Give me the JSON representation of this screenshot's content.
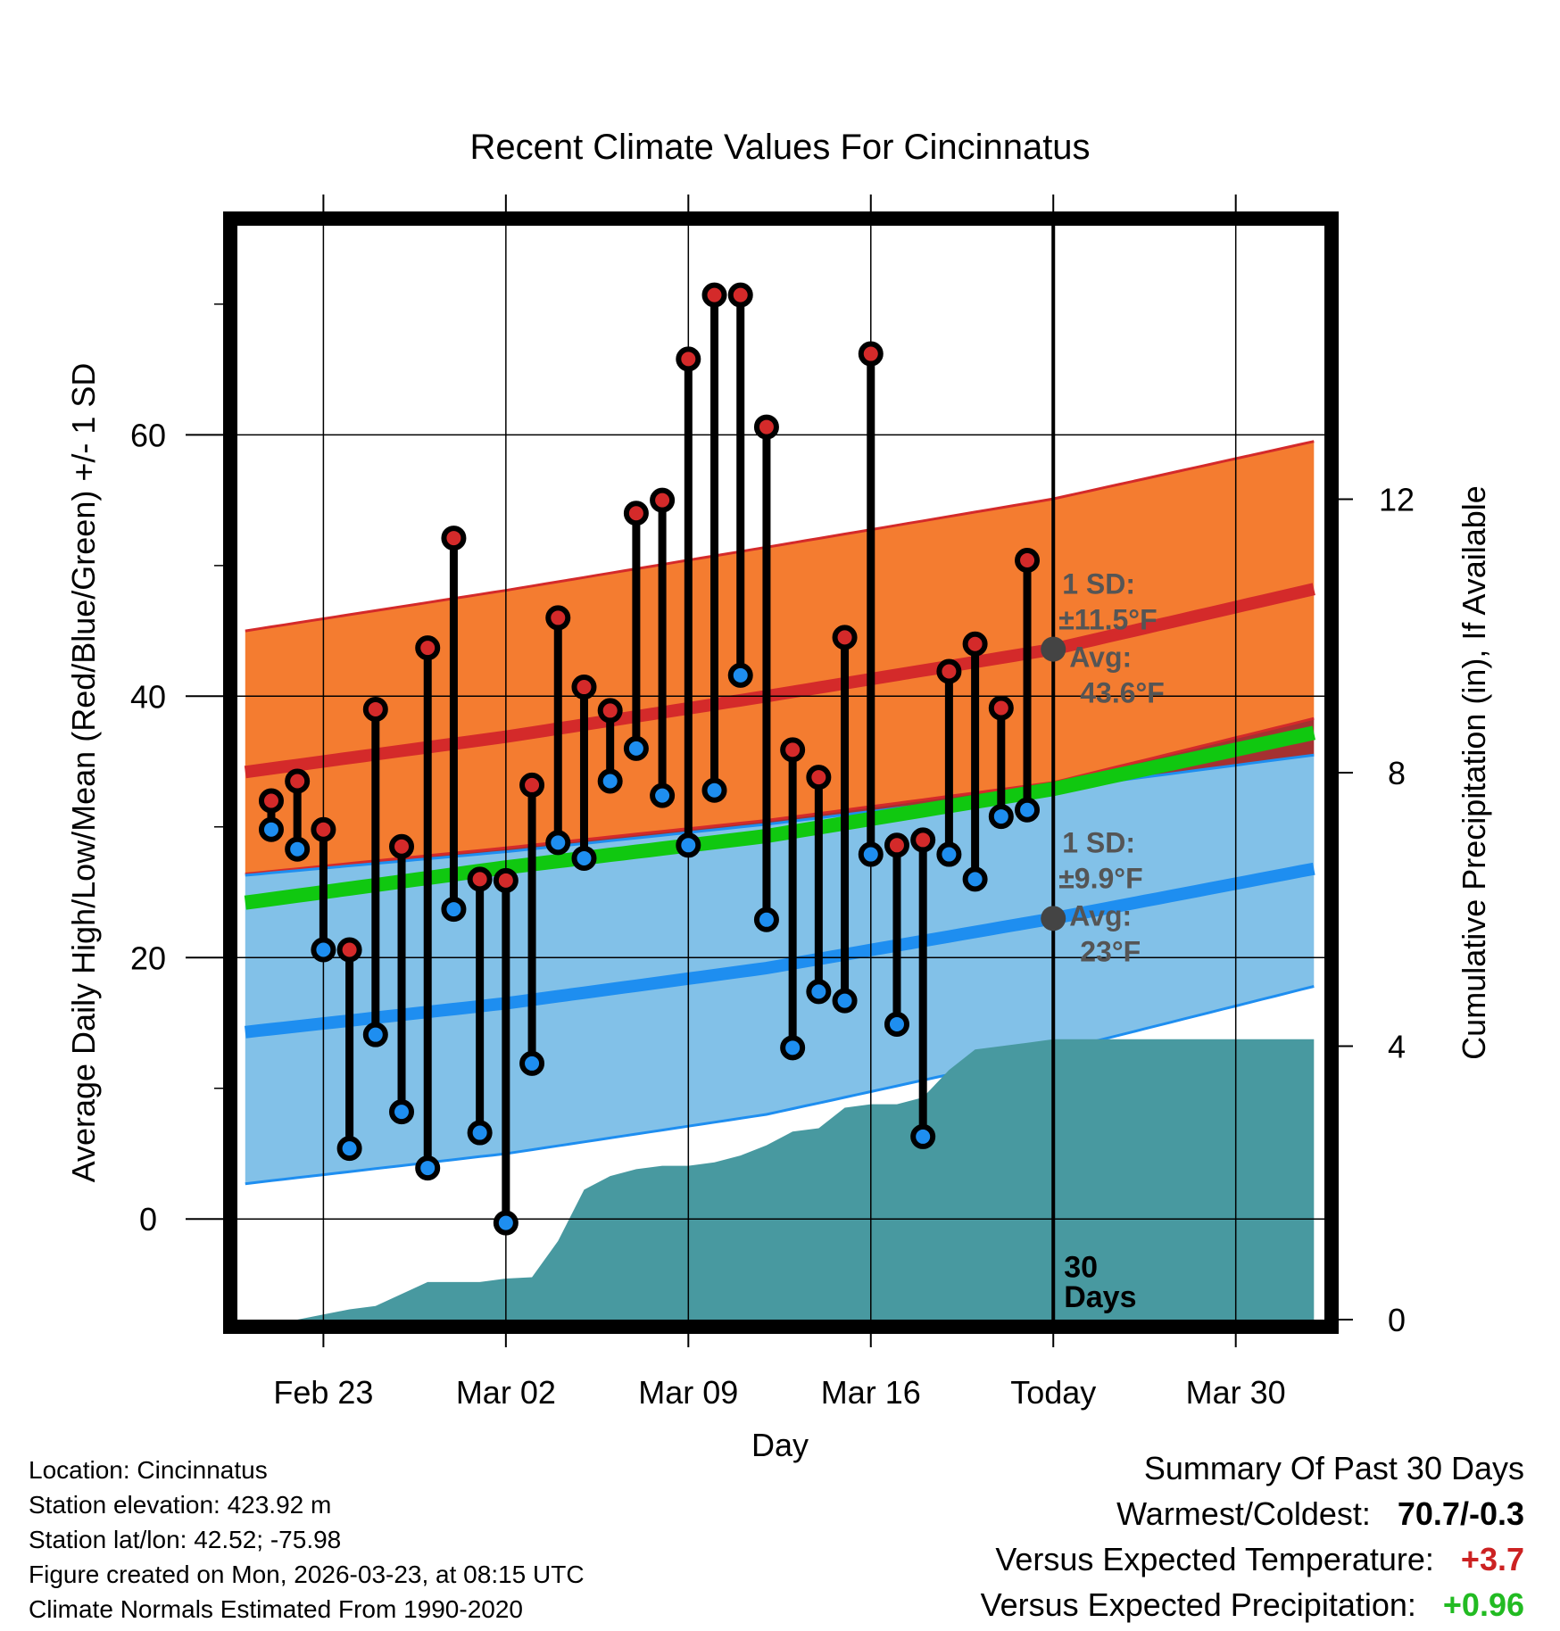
{
  "chart_data": {
    "type": "line",
    "title": "Recent Climate Values For Cincinnatus",
    "xlabel": "Day",
    "ylabel": "Average Daily High/Low/Mean (Red/Blue/Green) +/- 1 SD",
    "y2label": "Cumulative Precipitation (in), If Available",
    "xlim": [
      -0.3,
      41.4
    ],
    "ylim": [
      -7.7,
      76
    ],
    "y2lim": [
      0,
      16
    ],
    "x_ticks": [
      {
        "x": 3,
        "label": "Feb 23"
      },
      {
        "x": 10,
        "label": "Mar 02"
      },
      {
        "x": 17,
        "label": "Mar 09"
      },
      {
        "x": 24,
        "label": "Mar 16"
      },
      {
        "x": 31,
        "label": "Today"
      },
      {
        "x": 38,
        "label": "Mar 30"
      }
    ],
    "y_ticks": [
      0,
      20,
      40,
      60
    ],
    "y2_ticks": [
      0,
      4,
      8,
      12
    ],
    "today_x": 31,
    "days_label": "30 Days",
    "normals": {
      "high_mean": {
        "x": [
          0,
          10,
          20,
          31,
          41
        ],
        "y": [
          34.2,
          36.9,
          40.0,
          43.6,
          48.2
        ]
      },
      "high_upper": {
        "x": [
          0,
          10,
          20,
          31,
          41
        ],
        "y": [
          45.0,
          48.1,
          51.4,
          55.1,
          59.5
        ]
      },
      "high_lower": {
        "x": [
          0,
          10,
          20,
          31,
          41
        ],
        "y": [
          26.4,
          28.4,
          30.5,
          33.4,
          38.3
        ]
      },
      "low_mean": {
        "x": [
          0,
          10,
          20,
          31,
          41
        ],
        "y": [
          14.3,
          16.5,
          19.2,
          23.0,
          26.8
        ]
      },
      "low_upper": {
        "x": [
          0,
          10,
          20,
          31,
          41
        ],
        "y": [
          26.3,
          28.1,
          30.2,
          32.9,
          35.5
        ]
      },
      "low_lower": {
        "x": [
          0,
          10,
          20,
          31,
          41
        ],
        "y": [
          2.7,
          5.0,
          8.0,
          12.8,
          17.8
        ]
      },
      "mean_mean": {
        "x": [
          0,
          10,
          20,
          31,
          41
        ],
        "y": [
          24.2,
          26.9,
          29.3,
          32.9,
          37.2
        ]
      }
    },
    "series": [
      {
        "name": "High",
        "values": [
          32.0,
          33.5,
          29.8,
          20.6,
          39.0,
          28.5,
          43.7,
          52.1,
          26.0,
          25.9,
          33.2,
          46.0,
          40.7,
          38.9,
          54.0,
          55.0,
          65.8,
          70.7,
          70.7,
          60.6,
          35.9,
          33.8,
          44.5,
          66.2,
          28.6,
          29.0,
          41.9,
          44.0,
          39.1,
          50.4
        ]
      },
      {
        "name": "Low",
        "values": [
          29.8,
          28.3,
          20.6,
          5.4,
          14.1,
          8.2,
          3.9,
          23.7,
          6.6,
          -0.3,
          11.9,
          28.8,
          27.6,
          33.5,
          36.0,
          32.4,
          28.6,
          32.8,
          41.6,
          22.9,
          13.1,
          17.4,
          16.7,
          27.9,
          14.9,
          6.3,
          27.9,
          26.0,
          30.8,
          31.3
        ]
      },
      {
        "name": "Cumulative Precipitation",
        "x": [
          0,
          2,
          4,
          5,
          7,
          9,
          10,
          11,
          12,
          13,
          14,
          15,
          16,
          17,
          18,
          19,
          20,
          21,
          22,
          23,
          24,
          25,
          26,
          27,
          28,
          29,
          30,
          31,
          41
        ],
        "values": [
          0,
          0,
          0.15,
          0.2,
          0.55,
          0.55,
          0.6,
          0.62,
          1.15,
          1.9,
          2.1,
          2.2,
          2.25,
          2.25,
          2.3,
          2.4,
          2.55,
          2.75,
          2.8,
          3.1,
          3.15,
          3.15,
          3.25,
          3.65,
          3.95,
          4.0,
          4.05,
          4.1,
          4.1
        ]
      }
    ],
    "annotations": [
      {
        "target": "high",
        "sd_label": "1 SD:",
        "sd_value": "±11.5°F",
        "avg_label": "Avg:",
        "avg_value": "43.6°F",
        "marker_y": 43.6
      },
      {
        "target": "low",
        "sd_label": "1 SD:",
        "sd_value": "±9.9°F",
        "avg_label": "Avg:",
        "avg_value": "23°F",
        "marker_y": 23.0
      }
    ]
  },
  "footer": {
    "location": "Location: Cincinnatus",
    "elevation": "Station elevation: 423.92 m",
    "latlon": "Station lat/lon: 42.52; -75.98",
    "created": "Figure created on Mon, 2026-03-23, at 08:15 UTC",
    "normals": "Climate Normals Estimated From 1990-2020"
  },
  "summary": {
    "title": "Summary Of Past 30 Days",
    "warmest_label": "Warmest/Coldest:",
    "warmest_value": "70.7/-0.3",
    "temp_label": "Versus Expected Temperature:",
    "temp_value": "+3.7",
    "precip_label": "Versus Expected Precipitation:",
    "precip_value": "+0.96",
    "temp_color": "#cc2222",
    "precip_color": "#22bb22"
  },
  "colors": {
    "high_band": "#f47c30",
    "high_line": "#d42a2a",
    "low_band": "#82c1e8",
    "low_line": "#1e8ef0",
    "mean_line": "#10c810",
    "overlap": "#9b1b1b",
    "precip": "#4899a0",
    "high_dot": "#d42a2a",
    "low_dot": "#1e8ef0",
    "marker": "#444444"
  }
}
